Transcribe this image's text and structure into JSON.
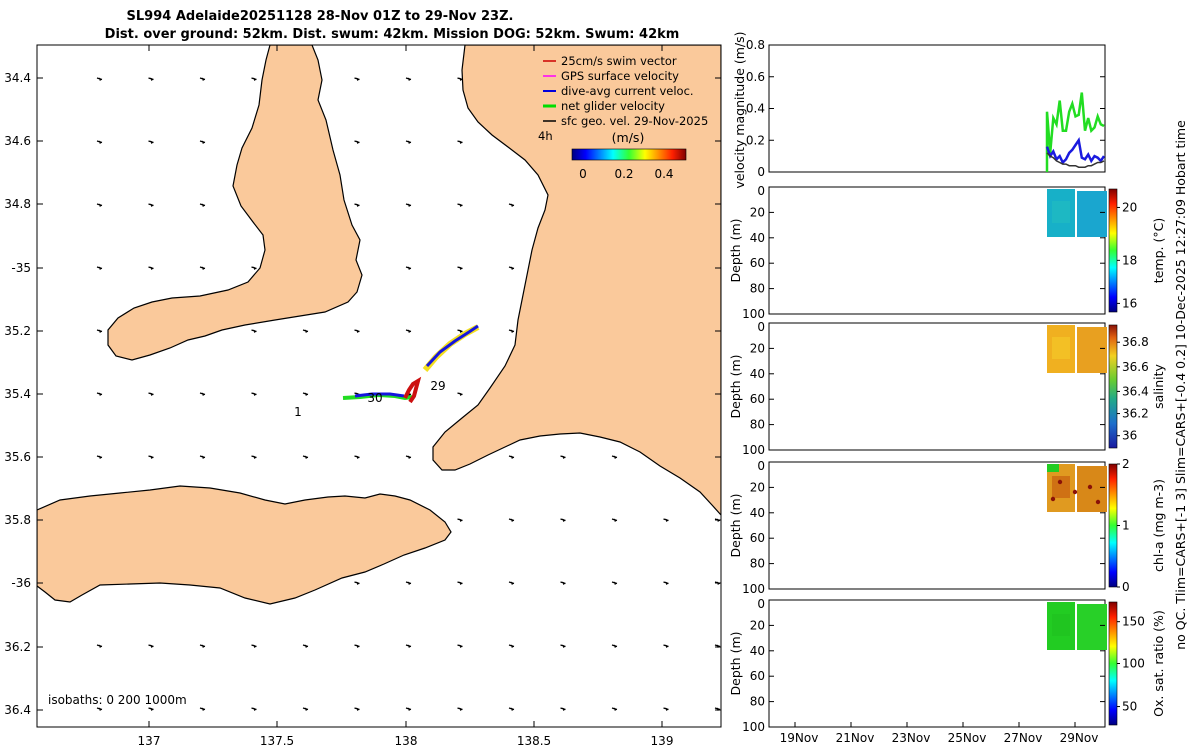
{
  "title": {
    "line1": "SL994 Adelaide20251128 28-Nov 01Z to 29-Nov 23Z.",
    "line2": "Dist. over ground: 52km. Dist. swum: 42km. Mission DOG: 52km. Swum: 42km"
  },
  "map": {
    "lat_ticks": [
      "34.4",
      "34.6",
      "34.8",
      "-35",
      "35.2",
      "35.4",
      "35.6",
      "35.8",
      "-36",
      "36.2",
      "36.4"
    ],
    "lon_ticks": [
      "137",
      "137.5",
      "138",
      "138.5",
      "139"
    ],
    "day_labels": [
      "29",
      "30",
      "1"
    ],
    "isobaths_label": "isobaths: 0   200   1000m",
    "legend": [
      {
        "label": "25cm/s swim vector",
        "color": "#cc0000"
      },
      {
        "label": "GPS surface velocity",
        "color": "#ff00ff"
      },
      {
        "label": "dive-avg current veloc.",
        "color": "#0000dd"
      },
      {
        "label": "net glider velocity",
        "color": "#00dd00"
      },
      {
        "label": "sfc geo. vel. 29-Nov-2025",
        "color": "#000000"
      }
    ],
    "interval_label": "4h",
    "colorbar": {
      "title": "(m/s)",
      "ticks": [
        "0",
        "0.2",
        "0.4"
      ]
    },
    "land_color": "#fac99b"
  },
  "velocity_panel": {
    "ylabel": "velocity magnitude (m/s)",
    "yticks": [
      "0",
      "0.2",
      "0.4",
      "0.6",
      "0.8"
    ],
    "ylim": [
      0,
      0.8
    ],
    "series": [
      {
        "name": "net glider velocity",
        "color": "#22dd22",
        "values": [
          0.38,
          0.12,
          0.34,
          0.3,
          0.45,
          0.26,
          0.26,
          0.38,
          0.43,
          0.35,
          0.36,
          0.5,
          0.26,
          0.34,
          0.26,
          0.28,
          0.35,
          0.3,
          0.29
        ]
      },
      {
        "name": "dive-avg current veloc.",
        "color": "#1a1adf",
        "values": [
          0.16,
          0.1,
          0.13,
          0.08,
          0.1,
          0.06,
          0.08,
          0.12,
          0.14,
          0.17,
          0.2,
          0.09,
          0.08,
          0.11,
          0.07,
          0.1,
          0.09,
          0.07,
          0.1
        ]
      },
      {
        "name": "sfc geo. vel.",
        "color": "#333333",
        "values": [
          0.12,
          0.1,
          0.09,
          0.07,
          0.06,
          0.05,
          0.05,
          0.04,
          0.04,
          0.04,
          0.03,
          0.03,
          0.03,
          0.04,
          0.04,
          0.05,
          0.06,
          0.06,
          0.07
        ]
      }
    ]
  },
  "profiles": [
    {
      "label": "Depth (m)",
      "cbar_label": "temp. (°C)",
      "cbar_ticks": [
        "16",
        "18",
        "20"
      ],
      "yticks": [
        "0",
        "20",
        "40",
        "60",
        "80",
        "100"
      ]
    },
    {
      "label": "Depth (m)",
      "cbar_label": "salinity",
      "cbar_ticks": [
        "36",
        "36.2",
        "36.4",
        "36.6",
        "36.8"
      ],
      "yticks": [
        "0",
        "20",
        "40",
        "60",
        "80",
        "100"
      ]
    },
    {
      "label": "Depth (m)",
      "cbar_label": "chl-a (mg m-3)",
      "cbar_ticks": [
        "0",
        "1",
        "2"
      ],
      "yticks": [
        "0",
        "20",
        "40",
        "60",
        "80",
        "100"
      ]
    },
    {
      "label": "Depth (m)",
      "cbar_label": "Ox. sat. ratio (%)",
      "cbar_ticks": [
        "50",
        "100",
        "150"
      ],
      "yticks": [
        "0",
        "20",
        "40",
        "60",
        "80",
        "100"
      ]
    }
  ],
  "date_ticks": [
    "19Nov",
    "21Nov",
    "23Nov",
    "25Nov",
    "27Nov",
    "29Nov"
  ],
  "side_note": "no QC. Tlim=CARS+[-1 3] Slim=CARS+[-0.4 0.2] 10-Dec-2025 12:27:09 Hobart time"
}
